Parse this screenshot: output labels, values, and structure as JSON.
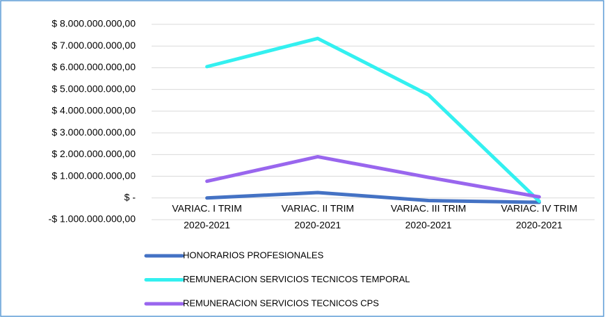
{
  "chart_data": {
    "type": "line",
    "categories": [
      [
        "VARIAC. I TRIM",
        "2020-2021"
      ],
      [
        "VARIAC. II TRIM",
        "2020-2021"
      ],
      [
        "VARIAC. III TRIM",
        "2020-2021"
      ],
      [
        "VARIAC. IV TRIM",
        "2020-2021"
      ]
    ],
    "series": [
      {
        "name": "HONORARIOS PROFESIONALES",
        "color": "#4472c4",
        "values": [
          0,
          250000000,
          -120000000,
          -200000000
        ]
      },
      {
        "name": "REMUNERACION SERVICIOS TECNICOS TEMPORAL",
        "color": "#33f0f0",
        "values": [
          6050000000,
          7350000000,
          4750000000,
          -150000000
        ]
      },
      {
        "name": "REMUNERACION SERVICIOS TECNICOS CPS",
        "color": "#9966ee",
        "values": [
          770000000,
          1900000000,
          950000000,
          50000000
        ]
      }
    ],
    "ylim": [
      -1000000000,
      8000000000
    ],
    "yticks": [
      {
        "value": -1000000000,
        "label": "-$ 1.000.000.000,00"
      },
      {
        "value": 0,
        "label": "$ -"
      },
      {
        "value": 1000000000,
        "label": "$ 1.000.000.000,00"
      },
      {
        "value": 2000000000,
        "label": "$ 2.000.000.000,00"
      },
      {
        "value": 3000000000,
        "label": "$ 3.000.000.000,00"
      },
      {
        "value": 4000000000,
        "label": "$ 4.000.000.000,00"
      },
      {
        "value": 5000000000,
        "label": "$ 5.000.000.000,00"
      },
      {
        "value": 6000000000,
        "label": "$ 6.000.000.000,00"
      },
      {
        "value": 7000000000,
        "label": "$ 7.000.000.000,00"
      },
      {
        "value": 8000000000,
        "label": "$ 8.000.000.000,00"
      }
    ],
    "grid": true,
    "legend": "bottom"
  }
}
